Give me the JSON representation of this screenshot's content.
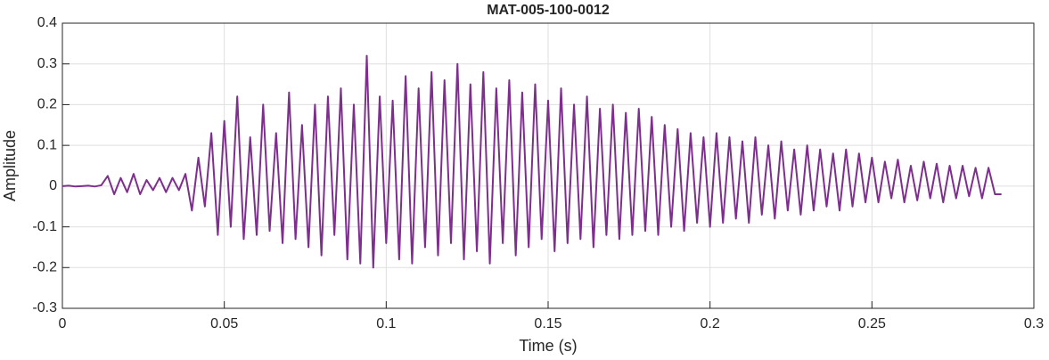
{
  "chart_data": {
    "type": "line",
    "title": "MAT-005-100-0012",
    "xlabel": "Time (s)",
    "ylabel": "Amplitude",
    "x": [
      0,
      0.002,
      0.004,
      0.006,
      0.008,
      0.01,
      0.012,
      0.014,
      0.016,
      0.018,
      0.02,
      0.022,
      0.024,
      0.026,
      0.028,
      0.03,
      0.032,
      0.034,
      0.036,
      0.038,
      0.04,
      0.042,
      0.044,
      0.046,
      0.048,
      0.05,
      0.052,
      0.054,
      0.056,
      0.058,
      0.06,
      0.062,
      0.064,
      0.066,
      0.068,
      0.07,
      0.072,
      0.074,
      0.076,
      0.078,
      0.08,
      0.082,
      0.084,
      0.086,
      0.088,
      0.09,
      0.092,
      0.094,
      0.096,
      0.098,
      0.1,
      0.102,
      0.104,
      0.106,
      0.108,
      0.11,
      0.112,
      0.114,
      0.116,
      0.118,
      0.12,
      0.122,
      0.124,
      0.126,
      0.128,
      0.13,
      0.132,
      0.134,
      0.136,
      0.138,
      0.14,
      0.142,
      0.144,
      0.146,
      0.148,
      0.15,
      0.152,
      0.154,
      0.156,
      0.158,
      0.16,
      0.162,
      0.164,
      0.166,
      0.168,
      0.17,
      0.172,
      0.174,
      0.176,
      0.178,
      0.18,
      0.182,
      0.184,
      0.186,
      0.188,
      0.19,
      0.192,
      0.194,
      0.196,
      0.198,
      0.2,
      0.202,
      0.204,
      0.206,
      0.208,
      0.21,
      0.212,
      0.214,
      0.216,
      0.218,
      0.22,
      0.222,
      0.224,
      0.226,
      0.228,
      0.23,
      0.232,
      0.234,
      0.236,
      0.238,
      0.24,
      0.242,
      0.244,
      0.246,
      0.248,
      0.25,
      0.252,
      0.254,
      0.256,
      0.258,
      0.26,
      0.262,
      0.264,
      0.266,
      0.268,
      0.27,
      0.272,
      0.274,
      0.276,
      0.278,
      0.28,
      0.282,
      0.284,
      0.286,
      0.288,
      0.29
    ],
    "values": [
      0,
      0.001,
      -0.001,
      0,
      0.001,
      -0.001,
      0.002,
      0.025,
      -0.02,
      0.02,
      -0.015,
      0.03,
      -0.02,
      0.015,
      -0.01,
      0.02,
      -0.015,
      0.02,
      -0.01,
      0.03,
      -0.06,
      0.07,
      -0.05,
      0.13,
      -0.12,
      0.16,
      -0.1,
      0.22,
      -0.13,
      0.12,
      -0.12,
      0.2,
      -0.11,
      0.13,
      -0.14,
      0.23,
      -0.13,
      0.15,
      -0.15,
      0.2,
      -0.17,
      0.22,
      -0.12,
      0.24,
      -0.18,
      0.2,
      -0.19,
      0.32,
      -0.2,
      0.22,
      -0.14,
      0.21,
      -0.18,
      0.27,
      -0.19,
      0.24,
      -0.15,
      0.28,
      -0.17,
      0.26,
      -0.14,
      0.3,
      -0.18,
      0.25,
      -0.16,
      0.28,
      -0.19,
      0.24,
      -0.14,
      0.26,
      -0.17,
      0.23,
      -0.15,
      0.25,
      -0.13,
      0.21,
      -0.16,
      0.24,
      -0.14,
      0.2,
      -0.13,
      0.22,
      -0.15,
      0.19,
      -0.12,
      0.2,
      -0.13,
      0.18,
      -0.12,
      0.19,
      -0.11,
      0.17,
      -0.12,
      0.15,
      -0.1,
      0.14,
      -0.11,
      0.13,
      -0.09,
      0.12,
      -0.1,
      0.13,
      -0.09,
      0.12,
      -0.08,
      0.11,
      -0.09,
      0.12,
      -0.07,
      0.1,
      -0.08,
      0.11,
      -0.06,
      0.09,
      -0.07,
      0.1,
      -0.06,
      0.09,
      -0.05,
      0.08,
      -0.06,
      0.09,
      -0.05,
      0.08,
      -0.04,
      0.07,
      -0.04,
      0.06,
      -0.03,
      0.065,
      -0.04,
      0.05,
      -0.035,
      0.06,
      -0.03,
      0.055,
      -0.04,
      0.05,
      -0.03,
      0.05,
      -0.025,
      0.045,
      -0.03,
      0.045,
      -0.02,
      -0.02
    ],
    "color": "#7e2f8e",
    "xlim": [
      0,
      0.3
    ],
    "xticks": [
      0,
      0.05,
      0.1,
      0.15,
      0.2,
      0.25,
      0.3
    ],
    "ylim": [
      -0.3,
      0.4
    ],
    "yticks": [
      -0.3,
      -0.2,
      -0.1,
      0,
      0.1,
      0.2,
      0.3,
      0.4
    ],
    "grid": true
  }
}
